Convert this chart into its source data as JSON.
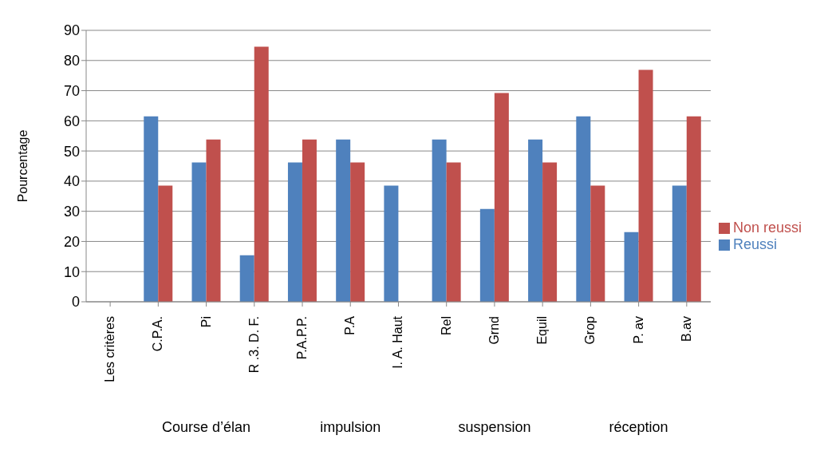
{
  "chart_data": {
    "type": "bar",
    "ylabel": "Pourcentage",
    "categories": [
      "Les critères",
      "C.P.A.",
      "Pi",
      "R .3. D. F.",
      "P.A.P.P.",
      "P.A",
      "I. A. Haut",
      "Rel",
      "Grnd",
      "Equil",
      "Grop",
      "P. av",
      "B.av"
    ],
    "series": [
      {
        "name": "Reussi",
        "color": "#4f81bd",
        "values": [
          null,
          61.5,
          46.2,
          15.4,
          46.2,
          53.8,
          38.5,
          53.8,
          30.8,
          53.8,
          61.5,
          23.1,
          38.5
        ]
      },
      {
        "name": "Non reussi",
        "color": "#c0504d",
        "values": [
          null,
          38.5,
          53.8,
          84.6,
          53.8,
          46.2,
          null,
          46.2,
          69.2,
          46.2,
          38.5,
          76.9,
          61.5
        ]
      }
    ],
    "ylim": [
      0,
      90
    ],
    "yticks": [
      0,
      10,
      20,
      30,
      40,
      50,
      60,
      70,
      80,
      90
    ],
    "grid": "y",
    "legend": "right",
    "annotations": [
      "Course d’élan",
      "impulsion",
      "suspension",
      "réception"
    ]
  }
}
